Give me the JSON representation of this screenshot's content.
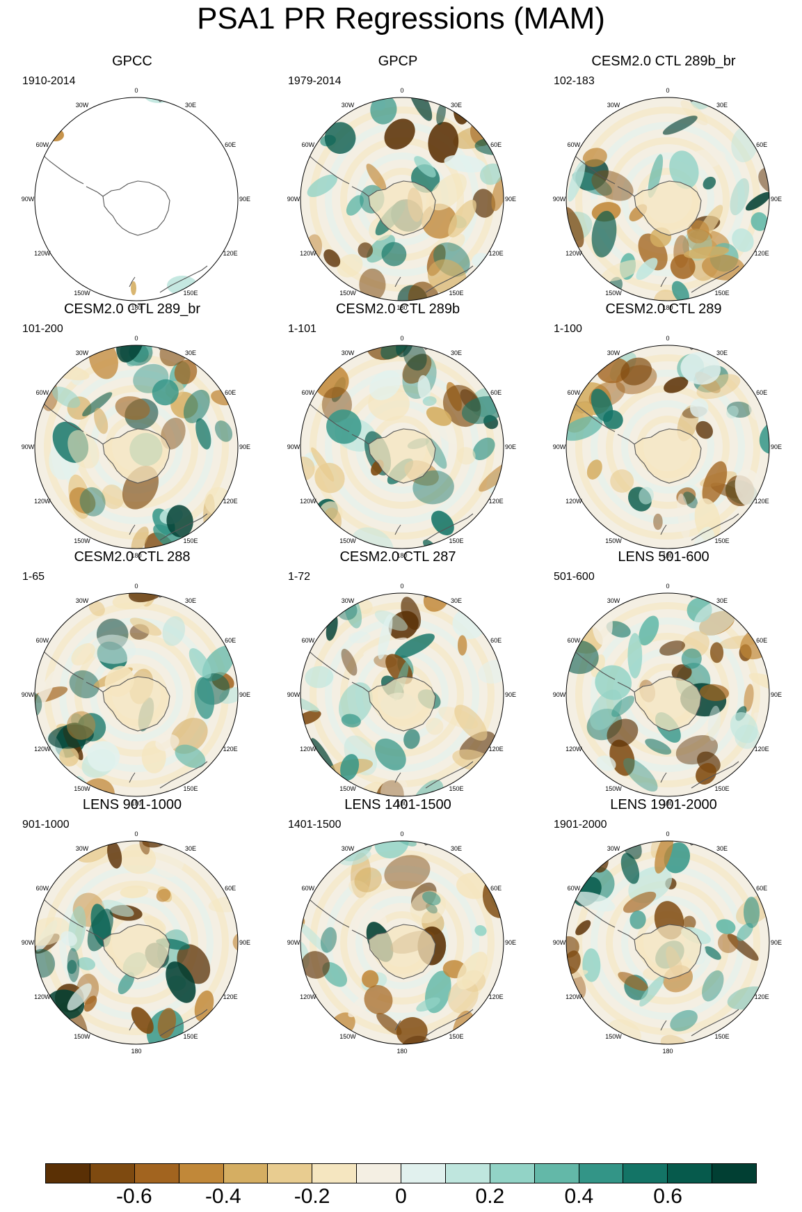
{
  "title": "PSA1 PR Regressions (MAM)",
  "longitude_labels": [
    "0",
    "30E",
    "60E",
    "90E",
    "120E",
    "150E",
    "180",
    "150W",
    "120W",
    "90W",
    "60W",
    "30W"
  ],
  "panels": [
    {
      "title": "GPCC",
      "years": "1910-2014",
      "land_only": true
    },
    {
      "title": "GPCP",
      "years": "1979-2014",
      "land_only": false
    },
    {
      "title": "CESM2.0 CTL 289b_br",
      "years": "102-183",
      "land_only": false
    },
    {
      "title": "CESM2.0 CTL 289_br",
      "years": "101-200",
      "land_only": false
    },
    {
      "title": "CESM2.0 CTL 289b",
      "years": "1-101",
      "land_only": false
    },
    {
      "title": "CESM2.0 CTL 289",
      "years": "1-100",
      "land_only": false
    },
    {
      "title": "CESM2.0 CTL 288",
      "years": "1-65",
      "land_only": false
    },
    {
      "title": "CESM2.0 CTL 287",
      "years": "1-72",
      "land_only": false
    },
    {
      "title": "LENS 501-600",
      "years": "501-600",
      "land_only": false
    },
    {
      "title": "LENS 901-1000",
      "years": "901-1000",
      "land_only": false
    },
    {
      "title": "LENS 1401-1500",
      "years": "1401-1500",
      "land_only": false
    },
    {
      "title": "LENS 1901-2000",
      "years": "1901-2000",
      "land_only": false
    }
  ],
  "colorbar": {
    "colors": [
      "#5a3005",
      "#7e4a10",
      "#a2641f",
      "#c18839",
      "#d5ae62",
      "#e8cc90",
      "#f5e6c0",
      "#f4efe3",
      "#e1f1ee",
      "#bfe6de",
      "#92d3c6",
      "#63b8a8",
      "#339587",
      "#137466",
      "#065a4c",
      "#013f33"
    ],
    "labels": [
      "-0.6",
      "-0.4",
      "-0.2",
      "0",
      "0.2",
      "0.4",
      "0.6"
    ]
  }
}
